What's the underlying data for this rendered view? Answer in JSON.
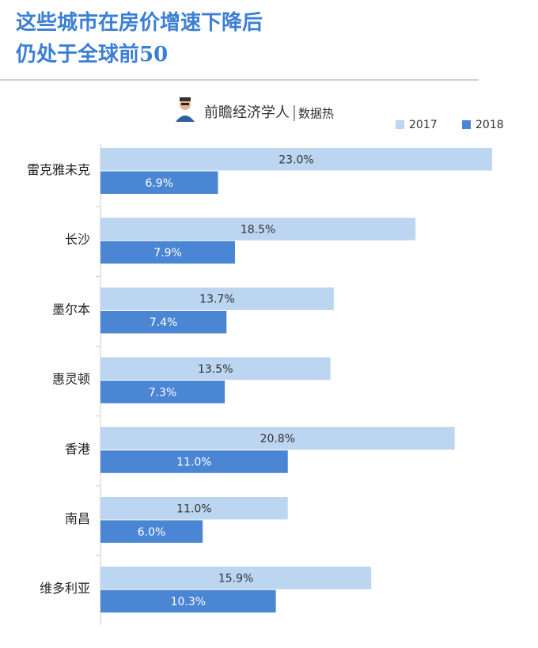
{
  "chart_data": {
    "type": "hbar",
    "title": [
      "这些城市在房价增速下降后",
      "仍处于全球前50"
    ],
    "brand": "前瞻经济学人",
    "brand_sub": "数据热",
    "categories": [
      "雷克雅未克",
      "长沙",
      "墨尔本",
      "惠灵顿",
      "香港",
      "南昌",
      "维多利亚"
    ],
    "series": [
      {
        "name": "2017",
        "color": "#bcd5f0",
        "label_color": "#333333",
        "values": [
          23.0,
          18.5,
          13.7,
          13.5,
          20.8,
          11.0,
          15.9
        ],
        "value_labels": [
          "23.0%",
          "18.5%",
          "13.7%",
          "13.5%",
          "20.8%",
          "11.0%",
          "15.9%"
        ]
      },
      {
        "name": "2018",
        "color": "#4a86d4",
        "label_color": "#ffffff",
        "values": [
          6.9,
          7.9,
          7.4,
          7.3,
          11.0,
          6.0,
          10.3
        ],
        "value_labels": [
          "6.9%",
          "7.9%",
          "7.4%",
          "7.3%",
          "11.0%",
          "6.0%",
          "10.3%"
        ]
      }
    ],
    "legend": "top-right"
  }
}
